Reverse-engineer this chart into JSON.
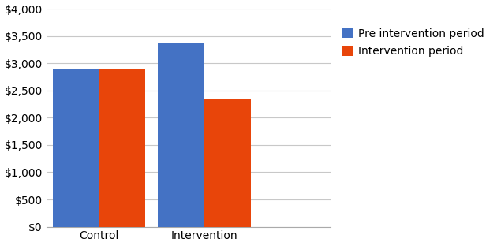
{
  "categories": [
    "Control",
    "Intervention"
  ],
  "pre_intervention": [
    2880,
    3380
  ],
  "intervention": [
    2880,
    2350
  ],
  "bar_color_pre": "#4472C4",
  "bar_color_int": "#E8450A",
  "legend_labels": [
    "Pre intervention period",
    "Intervention period"
  ],
  "ylim": [
    0,
    4000
  ],
  "yticks": [
    0,
    500,
    1000,
    1500,
    2000,
    2500,
    3000,
    3500,
    4000
  ],
  "bar_width": 0.22,
  "background_color": "#ffffff",
  "grid_color": "#c8c8c8",
  "tick_label_fontsize": 10,
  "legend_fontsize": 10,
  "x_positions": [
    0.25,
    0.75
  ]
}
